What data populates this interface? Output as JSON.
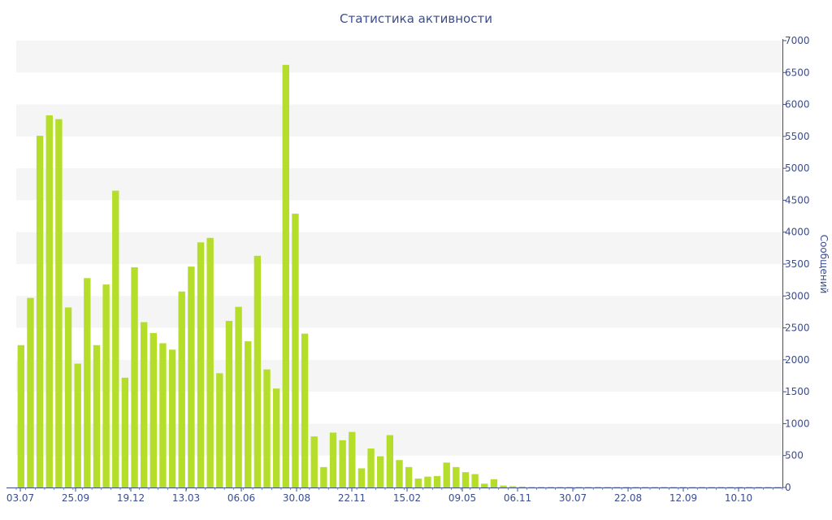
{
  "chart_data": {
    "type": "bar",
    "title": "Статистика активности",
    "ylabel": "Сообщений",
    "xlabel": "",
    "ylim": [
      0,
      7000
    ],
    "y_ticks": [
      0,
      500,
      1000,
      1500,
      2000,
      2500,
      3000,
      3500,
      4000,
      4500,
      5000,
      5500,
      6000,
      6500,
      7000
    ],
    "y_axis_side": "right",
    "grid": true,
    "x_tick_labels": [
      "03.07",
      "25.09",
      "19.12",
      "13.03",
      "06.06",
      "30.08",
      "22.11",
      "15.02",
      "09.05",
      "06.11",
      "30.07",
      "22.08",
      "12.09",
      "10.10"
    ],
    "values": [
      2230,
      2970,
      5510,
      5830,
      5770,
      2820,
      1940,
      3280,
      2230,
      3180,
      4650,
      1720,
      3450,
      2590,
      2420,
      2260,
      2160,
      3070,
      3460,
      3840,
      3910,
      1790,
      2610,
      2830,
      2290,
      3630,
      1850,
      1550,
      6620,
      4290,
      2410,
      800,
      320,
      860,
      740,
      870,
      300,
      610,
      490,
      820,
      430,
      320,
      140,
      170,
      180,
      390,
      320,
      240,
      210,
      60,
      130,
      30,
      20,
      15,
      10,
      10,
      10,
      10,
      10,
      10,
      10,
      10,
      10,
      10,
      10,
      10,
      10,
      10,
      10,
      10,
      10,
      10,
      10,
      10,
      10,
      10,
      10,
      10,
      10,
      10,
      10
    ],
    "colors": {
      "bar": "#b5de2a",
      "axis": "#3a4d8f",
      "band": "#f5f5f5",
      "grid": "#e6e6e6"
    }
  }
}
